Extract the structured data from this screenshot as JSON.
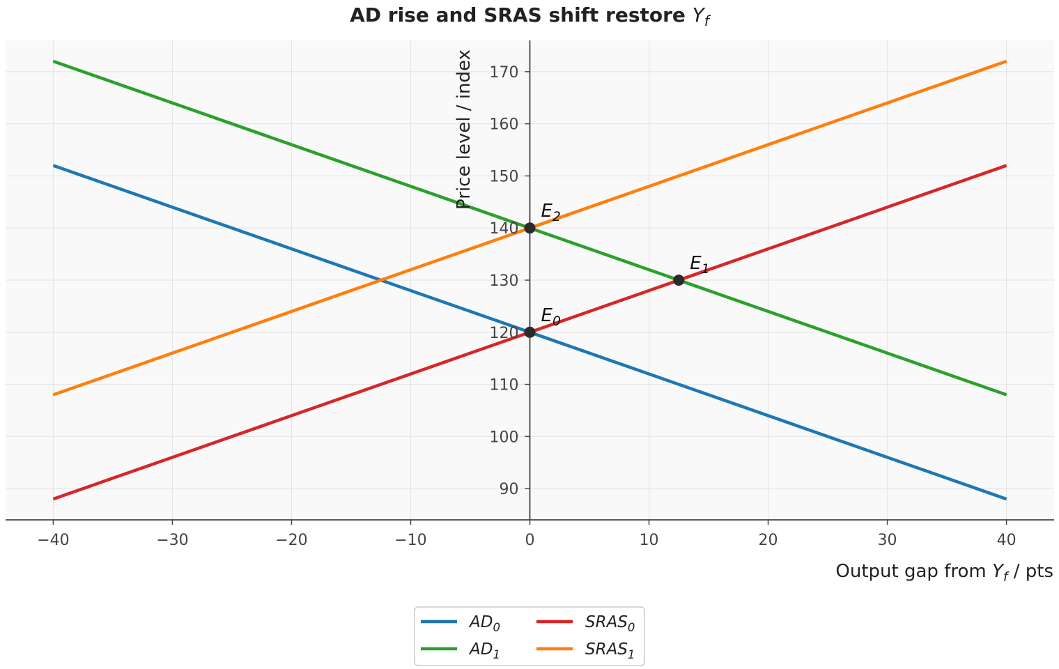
{
  "chart_data": {
    "type": "line",
    "title": {
      "text": "AD rise and SRAS shift restore ",
      "symbol": "Y",
      "sub": "f"
    },
    "xlabel": {
      "text": "Output gap from ",
      "symbol": "Y",
      "sub": "f",
      "after": " / pts"
    },
    "ylabel": "Price level / index",
    "xlim": [
      -44,
      44
    ],
    "ylim": [
      84,
      176
    ],
    "xticks": [
      -40,
      -30,
      -20,
      -10,
      0,
      10,
      20,
      30,
      40
    ],
    "xtick_labels": [
      "−40",
      "−30",
      "−20",
      "−10",
      "0",
      "10",
      "20",
      "30",
      "40"
    ],
    "yticks": [
      90,
      100,
      110,
      120,
      130,
      140,
      150,
      160,
      170
    ],
    "ytick_labels": [
      "90",
      "100",
      "110",
      "120",
      "130",
      "140",
      "150",
      "160",
      "170"
    ],
    "grid": true,
    "legend_position": "bottom-center",
    "series": [
      {
        "name": "AD",
        "sub": "0",
        "color": "#1f77b4",
        "x": [
          -40,
          40
        ],
        "y": [
          152,
          88
        ]
      },
      {
        "name": "AD",
        "sub": "1",
        "color": "#2ca02c",
        "x": [
          -40,
          40
        ],
        "y": [
          172,
          108
        ]
      },
      {
        "name": "SRAS",
        "sub": "0",
        "color": "#d62728",
        "x": [
          -40,
          40
        ],
        "y": [
          88,
          152
        ]
      },
      {
        "name": "SRAS",
        "sub": "1",
        "color": "#ff7f0e",
        "x": [
          -40,
          40
        ],
        "y": [
          108,
          172
        ]
      }
    ],
    "points": [
      {
        "label": "E",
        "sub": "0",
        "x": 0,
        "y": 120
      },
      {
        "label": "E",
        "sub": "1",
        "x": 12.5,
        "y": 130
      },
      {
        "label": "E",
        "sub": "2",
        "x": 0,
        "y": 140
      }
    ]
  },
  "colors": {
    "plot_background": "#f9f9f9",
    "grid": "#e6e6e6",
    "axis": "#444444",
    "point": "#2b2b2b"
  }
}
